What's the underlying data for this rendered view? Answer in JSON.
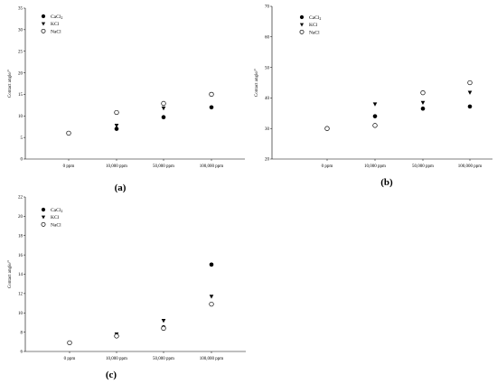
{
  "chart_data": [
    {
      "type": "scatter",
      "caption": "(a)",
      "ylabel": "Contact angle/°",
      "ylim": [
        0,
        35
      ],
      "yticks": [
        0,
        5,
        10,
        15,
        20,
        25,
        30,
        35
      ],
      "categories": [
        "0 ppm",
        "10,000 ppm",
        "50,000 ppm",
        "100,000 ppm"
      ],
      "grid": false,
      "legend_position": "top-left",
      "series": [
        {
          "name": "CaCl2",
          "marker": "filled-circle",
          "values": [
            6.0,
            7.0,
            9.7,
            12.0
          ]
        },
        {
          "name": "KCl",
          "marker": "filled-triangle-down",
          "values": [
            6.0,
            7.8,
            11.8,
            15.0
          ]
        },
        {
          "name": "NaCl",
          "marker": "open-circle",
          "values": [
            6.0,
            10.8,
            12.9,
            15.0
          ]
        }
      ]
    },
    {
      "type": "scatter",
      "caption": "(b)",
      "ylabel": "Contact angle/°",
      "ylim": [
        20,
        70
      ],
      "yticks": [
        20,
        30,
        40,
        50,
        60,
        70
      ],
      "categories": [
        "0 ppm",
        "10,000 ppm",
        "50,000 ppm",
        "100,000 ppm"
      ],
      "grid": false,
      "legend_position": "top-left",
      "series": [
        {
          "name": "CaCl2",
          "marker": "filled-circle",
          "values": [
            30.0,
            34.0,
            36.5,
            37.2
          ]
        },
        {
          "name": "KCl",
          "marker": "filled-triangle-down",
          "values": [
            30.0,
            38.0,
            38.5,
            41.8
          ]
        },
        {
          "name": "NaCl",
          "marker": "open-circle",
          "values": [
            30.0,
            31.0,
            41.7,
            45.0
          ]
        }
      ]
    },
    {
      "type": "scatter",
      "caption": "(c)",
      "ylabel": "Contact angle/°",
      "ylim": [
        6,
        22
      ],
      "yticks": [
        6,
        8,
        10,
        12,
        14,
        16,
        18,
        20,
        22
      ],
      "categories": [
        "0 ppm",
        "10,000 ppm",
        "50,000 ppm",
        "100,000 ppm"
      ],
      "grid": false,
      "legend_position": "top-left",
      "series": [
        {
          "name": "CaCl2",
          "marker": "filled-circle",
          "values": [
            6.9,
            7.6,
            8.5,
            15.0
          ]
        },
        {
          "name": "KCl",
          "marker": "filled-triangle-down",
          "values": [
            6.9,
            7.8,
            9.2,
            11.7
          ]
        },
        {
          "name": "NaCl",
          "marker": "open-circle",
          "values": [
            6.9,
            7.6,
            8.4,
            10.9
          ]
        }
      ]
    }
  ]
}
